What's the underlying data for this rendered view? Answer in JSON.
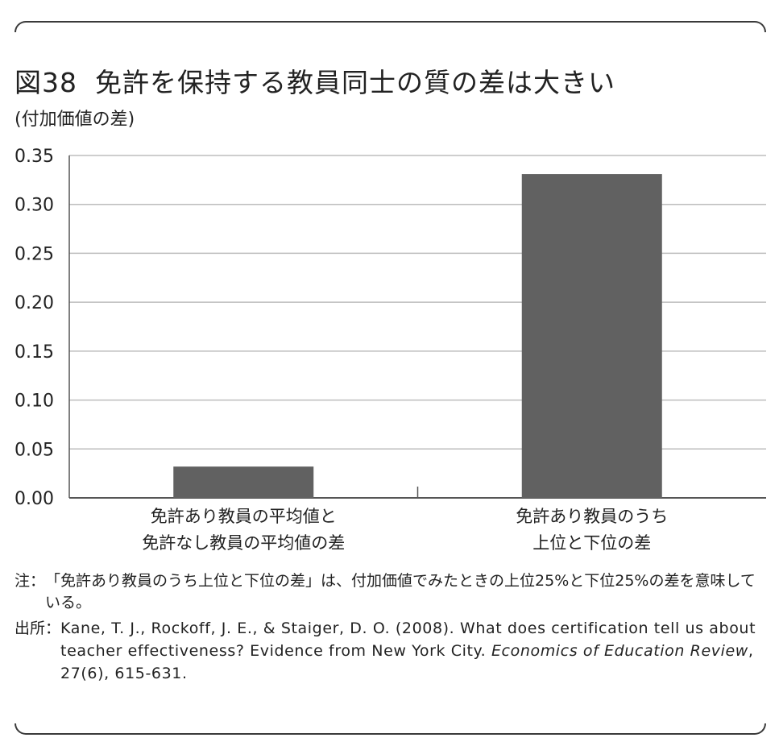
{
  "figure": {
    "number": "図38",
    "title": "免許を保持する教員同士の質の差は大きい",
    "ylabel": "(付加価値の差)"
  },
  "chart_data": {
    "type": "bar",
    "title": "免許を保持する教員同士の質の差は大きい",
    "ylabel": "(付加価値の差)",
    "xlabel": "",
    "categories": [
      [
        "免許あり教員の平均値と",
        "免許なし教員の平均値の差"
      ],
      [
        "免許あり教員のうち",
        "上位と下位の差"
      ]
    ],
    "values": [
      0.032,
      0.331
    ],
    "ylim": [
      0,
      0.35
    ],
    "yticks": [
      "0.00",
      "0.05",
      "0.10",
      "0.15",
      "0.20",
      "0.25",
      "0.30",
      "0.35"
    ],
    "grid": true,
    "colors": {
      "bar": "#616161",
      "grid": "#bdbdbd",
      "axis": "#555555"
    }
  },
  "note": {
    "label": "注：",
    "text": "「免許あり教員のうち上位と下位の差」は、付加価値でみたときの上位25%と下位25%の差を意味している。"
  },
  "source": {
    "label": "出所：",
    "text_before": "Kane, T. J., Rockoff, J. E., & Staiger, D. O. (2008). What does certification tell us about teacher effectiveness? Evidence from New York City. ",
    "journal": "Economics of Education Review",
    "text_after": ", 27(6), 615-631."
  }
}
